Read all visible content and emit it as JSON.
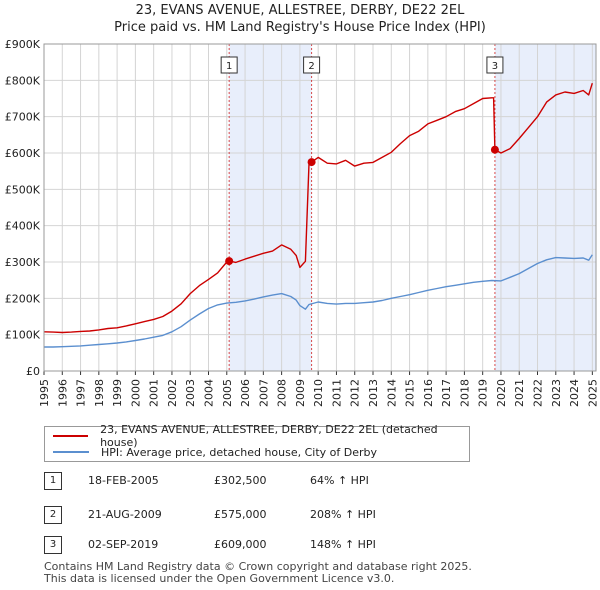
{
  "chart_data": {
    "type": "line",
    "title": "23, EVANS AVENUE, ALLESTREE, DERBY, DE22 2EL",
    "subtitle": "Price paid vs. HM Land Registry's House Price Index (HPI)",
    "xlabel": "",
    "ylabel": "",
    "xlim": [
      1995,
      2025.2
    ],
    "ylim": [
      0,
      900000
    ],
    "x_ticks": [
      1995,
      1996,
      1997,
      1998,
      1999,
      2000,
      2001,
      2002,
      2003,
      2004,
      2005,
      2006,
      2007,
      2008,
      2009,
      2010,
      2011,
      2012,
      2013,
      2014,
      2015,
      2016,
      2017,
      2018,
      2019,
      2020,
      2021,
      2022,
      2023,
      2024,
      2025
    ],
    "y_ticks": [
      {
        "value": 0,
        "label": "£0"
      },
      {
        "value": 100000,
        "label": "£100K"
      },
      {
        "value": 200000,
        "label": "£200K"
      },
      {
        "value": 300000,
        "label": "£300K"
      },
      {
        "value": 400000,
        "label": "£400K"
      },
      {
        "value": 500000,
        "label": "£500K"
      },
      {
        "value": 600000,
        "label": "£600K"
      },
      {
        "value": 700000,
        "label": "£700K"
      },
      {
        "value": 800000,
        "label": "£800K"
      },
      {
        "value": 900000,
        "label": "£900K"
      }
    ],
    "grid": true,
    "shaded_spans": [
      [
        2005.13,
        2009.64
      ],
      [
        2019.67,
        2025.2
      ]
    ],
    "series": [
      {
        "name": "23, EVANS AVENUE, ALLESTREE, DERBY, DE22 2EL (detached house)",
        "color": "#cc0000",
        "x": [
          1995.0,
          1995.5,
          1996.0,
          1996.5,
          1997.0,
          1997.5,
          1998.0,
          1998.5,
          1999.0,
          1999.5,
          2000.0,
          2000.5,
          2001.0,
          2001.5,
          2002.0,
          2002.5,
          2003.0,
          2003.5,
          2004.0,
          2004.5,
          2005.0,
          2005.13,
          2005.5,
          2006.0,
          2006.5,
          2007.0,
          2007.5,
          2008.0,
          2008.5,
          2008.8,
          2009.0,
          2009.3,
          2009.5,
          2009.64,
          2010.0,
          2010.5,
          2011.0,
          2011.5,
          2012.0,
          2012.5,
          2013.0,
          2013.5,
          2014.0,
          2014.5,
          2015.0,
          2015.5,
          2016.0,
          2016.5,
          2017.0,
          2017.5,
          2018.0,
          2018.5,
          2019.0,
          2019.5,
          2019.6,
          2019.67,
          2020.0,
          2020.5,
          2021.0,
          2021.5,
          2022.0,
          2022.5,
          2023.0,
          2023.5,
          2024.0,
          2024.5,
          2024.8,
          2025.0
        ],
        "values": [
          108000,
          107000,
          106000,
          107000,
          109000,
          110000,
          113000,
          117000,
          119000,
          124000,
          130000,
          136000,
          142000,
          150000,
          165000,
          185000,
          213000,
          235000,
          252000,
          270000,
          300000,
          302500,
          299000,
          308000,
          316000,
          324000,
          330000,
          347000,
          335000,
          318000,
          285000,
          302000,
          571000,
          575000,
          588000,
          572000,
          570000,
          580000,
          564000,
          572000,
          574000,
          588000,
          602000,
          626000,
          648000,
          660000,
          680000,
          690000,
          700000,
          714000,
          722000,
          736000,
          750000,
          752000,
          752000,
          609000,
          600000,
          612000,
          640000,
          670000,
          700000,
          740000,
          760000,
          768000,
          764000,
          772000,
          760000,
          792000
        ]
      },
      {
        "name": "HPI: Average price, detached house, City of Derby",
        "color": "#5b8fcf",
        "x": [
          1995.0,
          1995.5,
          1996.0,
          1996.5,
          1997.0,
          1997.5,
          1998.0,
          1998.5,
          1999.0,
          1999.5,
          2000.0,
          2000.5,
          2001.0,
          2001.5,
          2002.0,
          2002.5,
          2003.0,
          2003.5,
          2004.0,
          2004.5,
          2005.0,
          2005.5,
          2006.0,
          2006.5,
          2007.0,
          2007.5,
          2008.0,
          2008.5,
          2008.8,
          2009.0,
          2009.3,
          2009.5,
          2010.0,
          2010.5,
          2011.0,
          2011.5,
          2012.0,
          2012.5,
          2013.0,
          2013.5,
          2014.0,
          2014.5,
          2015.0,
          2015.5,
          2016.0,
          2016.5,
          2017.0,
          2017.5,
          2018.0,
          2018.5,
          2019.0,
          2019.5,
          2020.0,
          2020.5,
          2021.0,
          2021.5,
          2022.0,
          2022.5,
          2023.0,
          2023.5,
          2024.0,
          2024.5,
          2024.8,
          2025.0
        ],
        "values": [
          66000,
          66000,
          67000,
          68000,
          69000,
          71000,
          73000,
          75000,
          77000,
          80000,
          84000,
          88000,
          93000,
          98000,
          108000,
          122000,
          140000,
          157000,
          172000,
          182000,
          187000,
          189000,
          193000,
          198000,
          204000,
          209000,
          213000,
          205000,
          195000,
          180000,
          170000,
          183000,
          190000,
          186000,
          184000,
          186000,
          186000,
          188000,
          190000,
          194000,
          200000,
          205000,
          210000,
          216000,
          222000,
          227000,
          232000,
          236000,
          240000,
          244000,
          247000,
          249000,
          248000,
          258000,
          268000,
          282000,
          296000,
          306000,
          312000,
          311000,
          310000,
          311000,
          305000,
          320000
        ]
      }
    ],
    "annotations": [
      {
        "label": "1",
        "x": 2005.13,
        "value": 302500
      },
      {
        "label": "2",
        "x": 2009.64,
        "value": 575000
      },
      {
        "label": "3",
        "x": 2019.67,
        "value": 609000
      }
    ]
  },
  "legend": {
    "items": [
      {
        "label": "23, EVANS AVENUE, ALLESTREE, DERBY, DE22 2EL (detached house)",
        "color": "#cc0000"
      },
      {
        "label": "HPI: Average price, detached house, City of Derby",
        "color": "#5b8fcf"
      }
    ]
  },
  "sales": [
    {
      "num": "1",
      "date": "18-FEB-2005",
      "price": "£302,500",
      "hpi": "64% ↑ HPI"
    },
    {
      "num": "2",
      "date": "21-AUG-2009",
      "price": "£575,000",
      "hpi": "208% ↑ HPI"
    },
    {
      "num": "3",
      "date": "02-SEP-2019",
      "price": "£609,000",
      "hpi": "148% ↑ HPI"
    }
  ],
  "footer": {
    "line1": "Contains HM Land Registry data © Crown copyright and database right 2025.",
    "line2": "This data is licensed under the Open Government Licence v3.0."
  }
}
